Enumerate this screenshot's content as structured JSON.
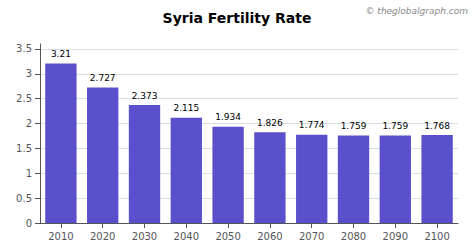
{
  "chart_data": {
    "type": "bar",
    "title": "Syria Fertility Rate",
    "annotations": [
      "© theglobalgraph.com"
    ],
    "categories": [
      "2010",
      "2020",
      "2030",
      "2040",
      "2050",
      "2060",
      "2070",
      "2080",
      "2090",
      "2100"
    ],
    "values": [
      3.21,
      2.727,
      2.373,
      2.115,
      1.934,
      1.826,
      1.774,
      1.759,
      1.759,
      1.768
    ],
    "color": "#5b50cc",
    "ylim": [
      0,
      3.6
    ],
    "yticks": [
      0,
      0.5,
      1,
      1.5,
      2,
      2.5,
      3,
      3.5
    ],
    "grid": true,
    "data_labels": true
  }
}
